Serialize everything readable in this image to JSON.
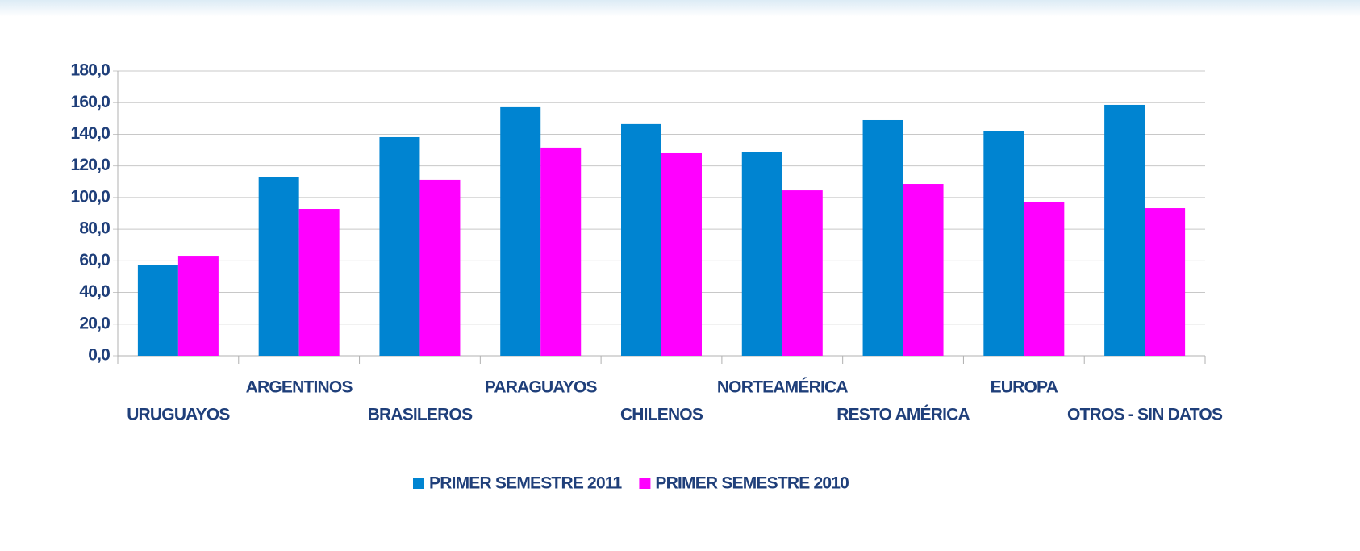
{
  "chart_data": {
    "type": "bar",
    "categories": [
      "URUGUAYOS",
      "ARGENTINOS",
      "BRASILEROS",
      "PARAGUAYOS",
      "CHILENOS",
      "NORTEAMÉRICA",
      "RESTO AMÉRICA",
      "EUROPA",
      "OTROS - SIN DATOS"
    ],
    "series": [
      {
        "name": "PRIMER SEMESTRE 2011",
        "color": "#0084d1",
        "values": [
          57.6,
          113.2,
          138.2,
          157.1,
          146.4,
          129.0,
          148.9,
          141.8,
          158.6
        ]
      },
      {
        "name": "PRIMER SEMESTRE 2010",
        "color": "#ff00ff",
        "values": [
          63.2,
          92.8,
          111.2,
          131.6,
          128.0,
          104.5,
          108.6,
          97.4,
          93.3
        ]
      }
    ],
    "ylim": [
      0,
      180
    ],
    "yticks": [
      {
        "value": 0,
        "label": "0,0"
      },
      {
        "value": 20,
        "label": "20,0"
      },
      {
        "value": 40,
        "label": "40,0"
      },
      {
        "value": 60,
        "label": "60,0"
      },
      {
        "value": 80,
        "label": "80,0"
      },
      {
        "value": 100,
        "label": "100,0"
      },
      {
        "value": 120,
        "label": "120,0"
      },
      {
        "value": 140,
        "label": "140,0"
      },
      {
        "value": 160,
        "label": "160,0"
      },
      {
        "value": 180,
        "label": "180,0"
      }
    ],
    "grid": true,
    "legend": "bottom"
  }
}
